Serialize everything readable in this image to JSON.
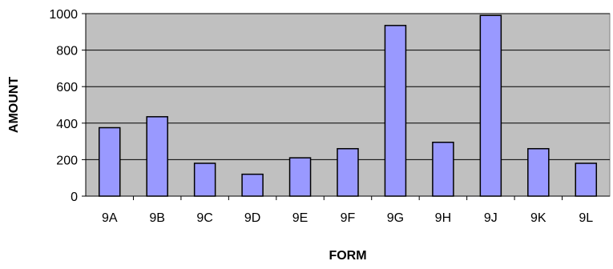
{
  "chart_data": {
    "type": "bar",
    "title": "",
    "xlabel": "FORM",
    "ylabel": "AMOUNT",
    "categories": [
      "9A",
      "9B",
      "9C",
      "9D",
      "9E",
      "9F",
      "9G",
      "9H",
      "9J",
      "9K",
      "9L"
    ],
    "values": [
      375,
      435,
      180,
      120,
      210,
      260,
      935,
      295,
      990,
      260,
      180
    ],
    "ylim": [
      0,
      1000
    ],
    "yticks": [
      0,
      200,
      400,
      600,
      800,
      1000
    ],
    "grid": true,
    "legend": "none",
    "colors": {
      "bar_fill": "#9999ff",
      "bar_stroke": "#000000",
      "plot_background": "#c0c0c0",
      "gridline": "#000000"
    }
  }
}
